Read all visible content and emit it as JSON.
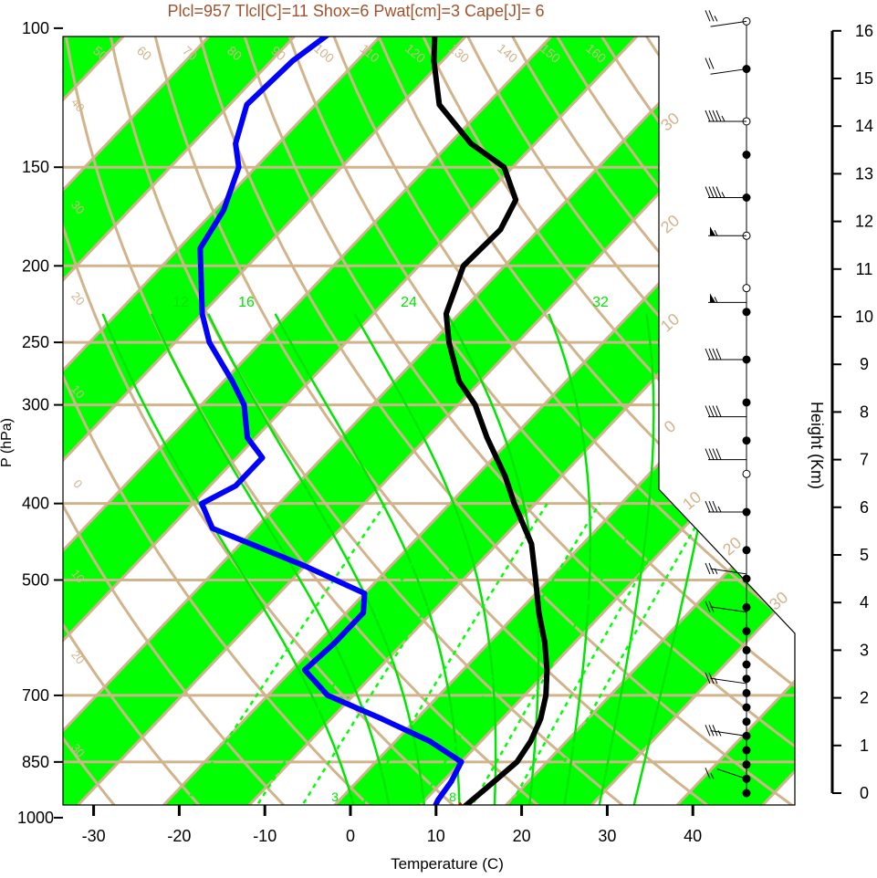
{
  "title": "Plcl=957 Tlcl[C]=11 Shox=6 Pwat[cm]=3 Cape[J]= 6",
  "colors": {
    "title": "#a0522d",
    "isotherm": "#d2b48c",
    "band": "#00ff00",
    "mixing_ratio": "#00ff00",
    "moist_adiabat": "#00e600",
    "dry_adiabat": "#d2b48c",
    "temperature": "#000000",
    "dewpoint": "#0000ff",
    "parcel": "#ff0000",
    "label_tan": "#d2b48c",
    "label_green": "#00e600"
  },
  "chart_data": {
    "type": "skew-t",
    "xlabel": "Temperature (C)",
    "ylabel": "P (hPa)",
    "right_label": "Height (Km)",
    "xlim": [
      -33,
      37
    ],
    "x_ticks": [
      "-30",
      "-20",
      "-10",
      "0",
      "10",
      "20",
      "30",
      "40"
    ],
    "y_ticks": [
      "100",
      "150",
      "200",
      "250",
      "300",
      "400",
      "500",
      "700",
      "850",
      "1000"
    ],
    "height_ticks": [
      "0",
      "1",
      "2",
      "3",
      "4",
      "5",
      "6",
      "7",
      "8",
      "9",
      "10",
      "11",
      "12",
      "13",
      "14",
      "15",
      "16"
    ],
    "mixing_ratio_labels": [
      "3",
      "8"
    ],
    "moist_adiabat_labels": [
      "12",
      "16",
      "24",
      "32"
    ],
    "dry_adiabat_top_labels": [
      "50",
      "60",
      "70",
      "80",
      "90",
      "100",
      "110",
      "120",
      "130",
      "140",
      "150",
      "160"
    ],
    "dry_adiabat_side_labels": [
      "30",
      "20",
      "10",
      "0"
    ],
    "isotherm_right_labels": [
      "30",
      "20",
      "10",
      "0",
      "10",
      "20",
      "30"
    ],
    "left_edge_labels": [
      "40",
      "30",
      "20",
      "10",
      "0",
      "10",
      "20",
      "30"
    ],
    "temperature": {
      "pressure": [
        100,
        110,
        125,
        140,
        150,
        165,
        180,
        200,
        230,
        250,
        280,
        300,
        330,
        370,
        400,
        450,
        500,
        550,
        600,
        650,
        700,
        750,
        800,
        850,
        900,
        950,
        1000
      ],
      "temp": [
        -74.5,
        -71,
        -65.5,
        -57.5,
        -51,
        -46,
        -44.5,
        -44.8,
        -41.5,
        -38,
        -32.5,
        -28,
        -23,
        -16.5,
        -12.5,
        -6,
        -1.5,
        2.5,
        6.5,
        9.8,
        12.5,
        14.5,
        15.8,
        16.5,
        16,
        15.5,
        15
      ]
    },
    "dewpoint": {
      "pressure": [
        100,
        110,
        125,
        140,
        150,
        170,
        190,
        200,
        230,
        250,
        280,
        300,
        330,
        350,
        380,
        400,
        430,
        480,
        520,
        550,
        600,
        650,
        700,
        750,
        800,
        850,
        900,
        950,
        1000
      ],
      "dewp": [
        -86,
        -87.5,
        -88,
        -85,
        -82,
        -79,
        -77.5,
        -75.5,
        -70,
        -66,
        -59,
        -55,
        -51,
        -47,
        -47,
        -49,
        -45,
        -30,
        -20,
        -18,
        -18,
        -18.5,
        -13,
        -4,
        4,
        10,
        11,
        11.5,
        12.5
      ]
    },
    "parcel": {
      "pressure": [
        960,
        980,
        1000
      ],
      "temp": [
        14.5,
        15.8,
        17
      ]
    },
    "wind_levels": [
      {
        "km": 16.2,
        "speed": 25,
        "dir": 290
      },
      {
        "km": 15.2,
        "speed": 20,
        "dir": 290
      },
      {
        "km": 14.1,
        "speed": 45,
        "dir": 270
      },
      {
        "km": 12.5,
        "speed": 45,
        "dir": 270
      },
      {
        "km": 11.7,
        "speed": 55,
        "dir": 270
      },
      {
        "km": 10.3,
        "speed": 55,
        "dir": 270
      },
      {
        "km": 9.1,
        "speed": 40,
        "dir": 270
      },
      {
        "km": 7.9,
        "speed": 40,
        "dir": 270
      },
      {
        "km": 7.0,
        "speed": 40,
        "dir": 270
      },
      {
        "km": 5.9,
        "speed": 35,
        "dir": 270
      },
      {
        "km": 4.6,
        "speed": 25,
        "dir": 250
      },
      {
        "km": 3.8,
        "speed": 20,
        "dir": 250
      },
      {
        "km": 2.3,
        "speed": 25,
        "dir": 250
      },
      {
        "km": 1.2,
        "speed": 35,
        "dir": 250
      },
      {
        "km": 0.3,
        "speed": 15,
        "dir": 230
      }
    ],
    "grid": true,
    "legend": "none"
  }
}
